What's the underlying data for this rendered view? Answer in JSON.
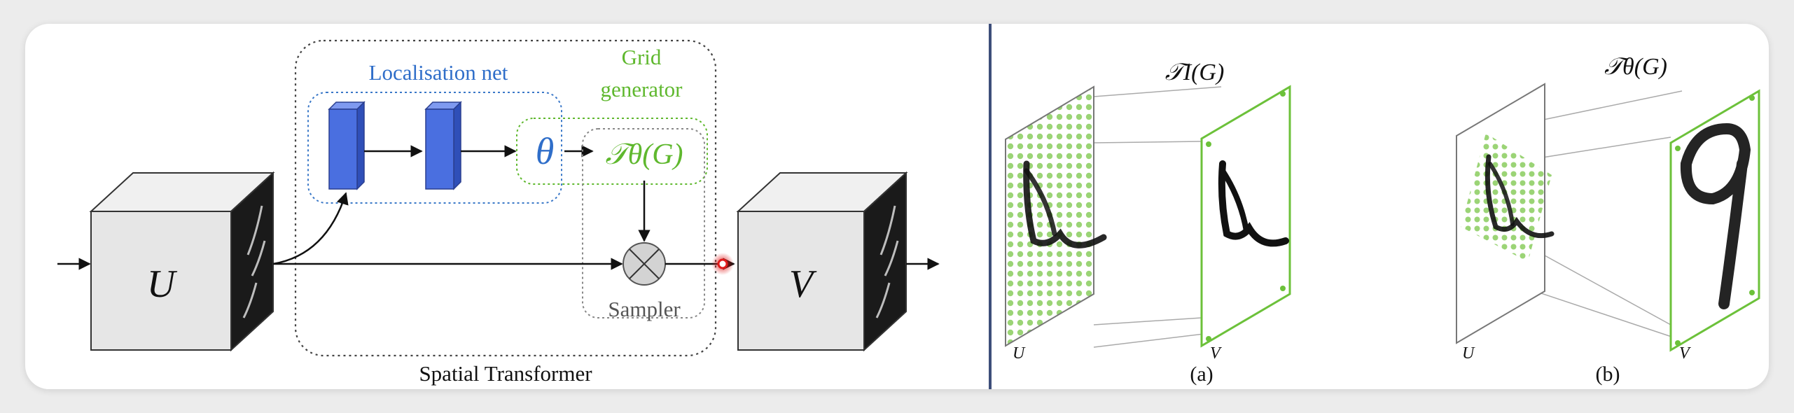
{
  "left_panel": {
    "input_label": "U",
    "output_label": "V",
    "localisation_label": "Localisation net",
    "grid_generator_label_line1": "Grid",
    "grid_generator_label_line2": "generator",
    "theta_symbol": "θ",
    "transform_expr": "𝒯θ(G)",
    "sampler_label": "Sampler",
    "module_title": "Spatial Transformer"
  },
  "right_panel": {
    "panel_a": {
      "transform_label": "𝒯I(G)",
      "source_label": "U",
      "target_label": "V",
      "caption": "(a)"
    },
    "panel_b": {
      "transform_label": "𝒯θ(G)",
      "source_label": "U",
      "target_label": "V",
      "caption": "(b)"
    }
  },
  "colors": {
    "localisation": "#2f6ec9",
    "grid": "#5fb82e",
    "block_fill": "#4a6fe0",
    "cursor_dot": "#e01b1b"
  }
}
